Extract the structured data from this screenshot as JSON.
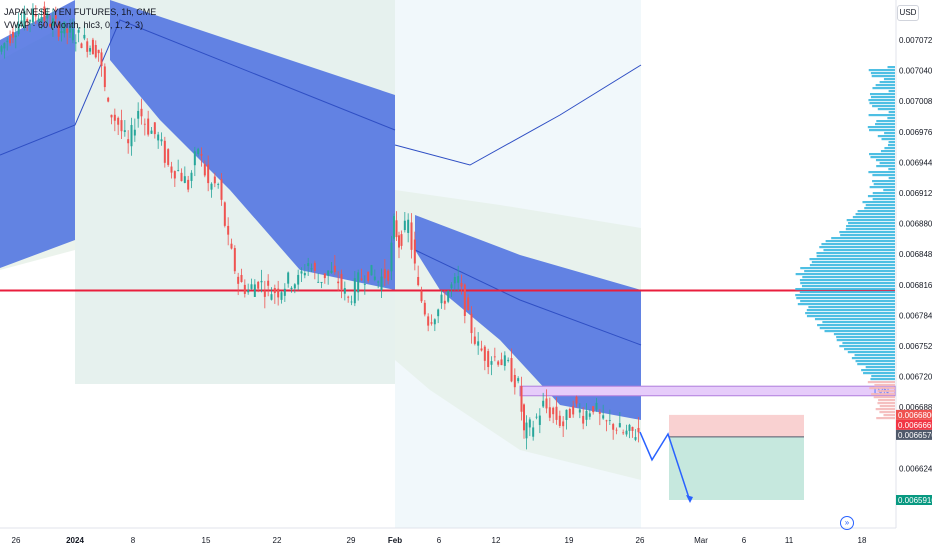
{
  "legend": {
    "symbol": "JAPANESE YEN FUTURES, 1h, CME",
    "indicator": "VWAP · 60 (Month, hlc3, 0, 1, 2, 3)"
  },
  "currency": "USD",
  "colors": {
    "band_blue": "#4a6ee0",
    "band_light": "#e3eee4",
    "session_bg": "#e8f4f8",
    "candle_up": "#26a69a",
    "candle_down": "#ef5350",
    "red_line": "#e91e3c",
    "lvn": "#d7b5f5",
    "stop_zone": "#f8c6c6",
    "target_zone": "#b8e2d6",
    "profile_blue": "#3bb8e0",
    "profile_red": "#f4b8b8"
  },
  "chart_data": {
    "type": "candlestick",
    "title": "JAPANESE YEN FUTURES, 1h, CME",
    "price_ticks": [
      "0.0070720",
      "0.0070400",
      "0.0070080",
      "0.0069760",
      "0.0069440",
      "0.0069120",
      "0.0068800",
      "0.0068480",
      "0.0068160",
      "0.0067840",
      "0.0067520",
      "0.0067200",
      "0.0066880",
      "0.0066240",
      "0.0065910"
    ],
    "price_tags": [
      {
        "label": "0.0066800",
        "value": 0.00668,
        "color": "#ef5350"
      },
      {
        "label": "0.0066665",
        "value": 0.0066665,
        "color": "#f23645"
      },
      {
        "label": "0.0066570",
        "value": 0.006657,
        "color": "#505a6b"
      },
      {
        "label": "0.0065910",
        "value": 0.006591,
        "color": "#089981"
      }
    ],
    "time_ticks": [
      "26",
      "2024",
      "8",
      "15",
      "22",
      "29",
      "Feb",
      "6",
      "12",
      "19",
      "26",
      "Mar",
      "6",
      "11",
      "18"
    ],
    "horizontal_level": 0.00681,
    "lvn_label": "LVN",
    "lvn_zone": [
      0.00671,
      0.0067
    ],
    "price_path": [
      [
        0,
        0.00706
      ],
      [
        20,
        0.00709
      ],
      [
        40,
        0.0071
      ],
      [
        60,
        0.007085
      ],
      [
        80,
        0.007075
      ],
      [
        100,
        0.00706
      ],
      [
        110,
        0.007
      ],
      [
        120,
        0.006985
      ],
      [
        130,
        0.00696
      ],
      [
        140,
        0.007
      ],
      [
        150,
        0.00698
      ],
      [
        160,
        0.00697
      ],
      [
        170,
        0.00694
      ],
      [
        180,
        0.006935
      ],
      [
        190,
        0.00692
      ],
      [
        200,
        0.00696
      ],
      [
        210,
        0.00692
      ],
      [
        220,
        0.00692
      ],
      [
        230,
        0.00686
      ],
      [
        240,
        0.00682
      ],
      [
        250,
        0.00681
      ],
      [
        260,
        0.00682
      ],
      [
        270,
        0.00681
      ],
      [
        280,
        0.00681
      ],
      [
        290,
        0.00682
      ],
      [
        300,
        0.00682
      ],
      [
        310,
        0.00684
      ],
      [
        320,
        0.00682
      ],
      [
        330,
        0.00683
      ],
      [
        340,
        0.00682
      ],
      [
        350,
        0.0068
      ],
      [
        360,
        0.00682
      ],
      [
        370,
        0.00683
      ],
      [
        380,
        0.00682
      ],
      [
        390,
        0.00683
      ],
      [
        395,
        0.00688
      ],
      [
        400,
        0.00686
      ],
      [
        410,
        0.00688
      ],
      [
        420,
        0.00681
      ],
      [
        430,
        0.00678
      ],
      [
        440,
        0.00679
      ],
      [
        450,
        0.00681
      ],
      [
        460,
        0.00682
      ],
      [
        470,
        0.00678
      ],
      [
        480,
        0.00675
      ],
      [
        490,
        0.00674
      ],
      [
        500,
        0.00674
      ],
      [
        510,
        0.00673
      ],
      [
        520,
        0.00671
      ],
      [
        525,
        0.00666
      ],
      [
        535,
        0.00667
      ],
      [
        545,
        0.00669
      ],
      [
        555,
        0.00668
      ],
      [
        565,
        0.00667
      ],
      [
        575,
        0.00669
      ],
      [
        585,
        0.00668
      ],
      [
        595,
        0.00669
      ],
      [
        605,
        0.00667
      ],
      [
        615,
        0.00667
      ],
      [
        625,
        0.00666
      ],
      [
        640,
        0.006662
      ]
    ],
    "projection": [
      [
        640,
        0.006662
      ],
      [
        652,
        0.006633
      ],
      [
        668,
        0.00666
      ],
      [
        690,
        0.00659
      ]
    ],
    "stop_zone": [
      0.00668,
      0.006657
    ],
    "target_zone": [
      0.006657,
      0.006591
    ]
  }
}
